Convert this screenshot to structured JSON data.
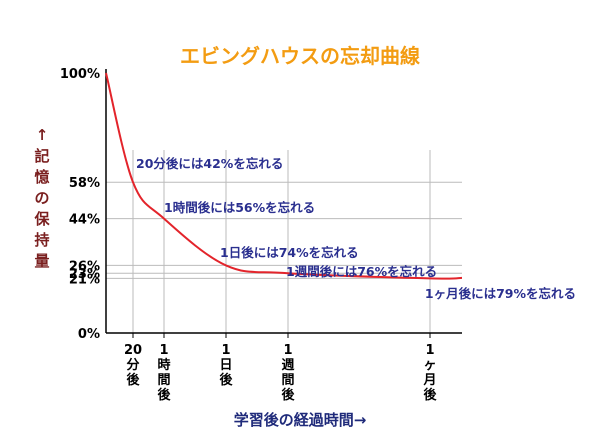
{
  "chart_data": {
    "type": "line",
    "title": "エビングハウスの忘却曲線",
    "ylabel": "↑記憶の保持量",
    "xlabel": "学習後の経過時間→",
    "y_ticks": [
      "100%",
      "58%",
      "44%",
      "26%",
      "23%",
      "21%",
      "0%"
    ],
    "y_tick_values": [
      100,
      58,
      44,
      26,
      23,
      21,
      0
    ],
    "x_ticks": [
      "20分後",
      "1時間後",
      "1日後",
      "1週間後",
      "1ヶ月後"
    ],
    "series": [
      {
        "points": [
          {
            "x": "0",
            "y": 100
          },
          {
            "x": "20分後",
            "y": 58
          },
          {
            "x": "1時間後",
            "y": 44
          },
          {
            "x": "1日後",
            "y": 26
          },
          {
            "x": "1週間後",
            "y": 23
          },
          {
            "x": "1ヶ月後",
            "y": 21
          }
        ]
      }
    ],
    "annotations": [
      "20分後には42%を忘れる",
      "1時間後には56%を忘れる",
      "1日後には74%を忘れる",
      "1週間後には76%を忘れる",
      "1ヶ月後には79%を忘れる"
    ],
    "ylim": [
      0,
      100
    ],
    "grid": true,
    "colors": {
      "title": "#f39c12",
      "curve": "#e3242b",
      "ylabel": "#7a1f1f",
      "xlabel": "#1f2a7a",
      "annotation": "#2a2f8f",
      "axis": "#000000",
      "grid": "#bbbbbb"
    }
  }
}
